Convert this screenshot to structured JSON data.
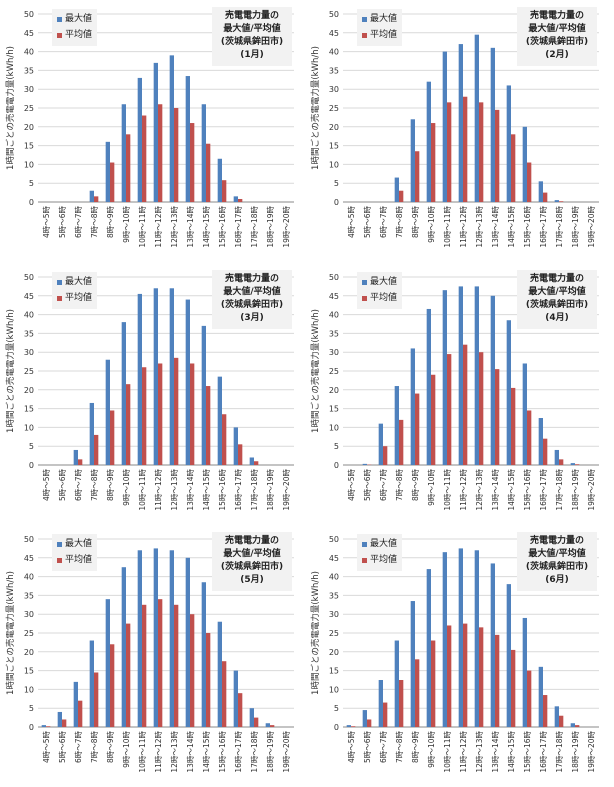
{
  "chart_data": [
    {
      "type": "bar",
      "title_lines": [
        "売電電力量の",
        "最大値/平均値",
        "(茨城県鉾田市)",
        "(1月)"
      ],
      "ylabel": "1時間ごとの売電電力量(kWh/h)",
      "ylim": [
        0,
        50
      ],
      "yticks": [
        0,
        5,
        10,
        15,
        20,
        25,
        30,
        35,
        40,
        45,
        50
      ],
      "categories": [
        "4時～5時",
        "5時～6時",
        "6時～7時",
        "7時～8時",
        "8時～9時",
        "9時～10時",
        "10時～11時",
        "11時～12時",
        "12時～13時",
        "13時～14時",
        "14時～15時",
        "15時～16時",
        "16時～17時",
        "17時～18時",
        "18時～19時",
        "19時～20時"
      ],
      "series": [
        {
          "name": "最大値",
          "color": "#4f81bd",
          "values": [
            0,
            0,
            0,
            3,
            16,
            26,
            33,
            37,
            39,
            33.5,
            26,
            11.5,
            1.5,
            0,
            0,
            0
          ]
        },
        {
          "name": "平均値",
          "color": "#c0504d",
          "values": [
            0,
            0,
            0,
            1.5,
            10.5,
            18,
            23,
            26,
            25,
            21,
            15.5,
            5.8,
            0.8,
            0,
            0,
            0
          ]
        }
      ]
    },
    {
      "type": "bar",
      "title_lines": [
        "売電電力量の",
        "最大値/平均値",
        "(茨城県鉾田市)",
        "(2月)"
      ],
      "ylabel": "1時間ごとの売電電力量(kWh/h)",
      "ylim": [
        0,
        50
      ],
      "yticks": [
        0,
        5,
        10,
        15,
        20,
        25,
        30,
        35,
        40,
        45,
        50
      ],
      "categories": [
        "4時～5時",
        "5時～6時",
        "6時～7時",
        "7時～8時",
        "8時～9時",
        "9時～10時",
        "10時～11時",
        "11時～12時",
        "12時～13時",
        "13時～14時",
        "14時～15時",
        "15時～16時",
        "16時～17時",
        "17時～18時",
        "18時～19時",
        "19時～20時"
      ],
      "series": [
        {
          "name": "最大値",
          "color": "#4f81bd",
          "values": [
            0,
            0,
            0,
            6.5,
            22,
            32,
            40,
            42,
            44.5,
            41,
            31,
            20,
            5.5,
            0.5,
            0,
            0
          ]
        },
        {
          "name": "平均値",
          "color": "#c0504d",
          "values": [
            0,
            0,
            0,
            3,
            13.5,
            21,
            26.5,
            28,
            26.5,
            24.5,
            18,
            10.5,
            2.5,
            0.2,
            0,
            0
          ]
        }
      ]
    },
    {
      "type": "bar",
      "title_lines": [
        "売電電力量の",
        "最大値/平均値",
        "(茨城県鉾田市)",
        "(3月)"
      ],
      "ylabel": "1時間ごとの売電電力量(kWh/h)",
      "ylim": [
        0,
        50
      ],
      "yticks": [
        0,
        5,
        10,
        15,
        20,
        25,
        30,
        35,
        40,
        45,
        50
      ],
      "categories": [
        "4時～5時",
        "5時～6時",
        "6時～7時",
        "7時～8時",
        "8時～9時",
        "9時～10時",
        "10時～11時",
        "11時～12時",
        "12時～13時",
        "13時～14時",
        "14時～15時",
        "15時～16時",
        "16時～17時",
        "17時～18時",
        "18時～19時",
        "19時～20時"
      ],
      "series": [
        {
          "name": "最大値",
          "color": "#4f81bd",
          "values": [
            0,
            0,
            4,
            16.5,
            28,
            38,
            45.5,
            47,
            47,
            44,
            37,
            23.5,
            10,
            2,
            0,
            0
          ]
        },
        {
          "name": "平均値",
          "color": "#c0504d",
          "values": [
            0,
            0,
            1.5,
            8,
            14.5,
            21.5,
            26,
            27,
            28.5,
            27,
            21,
            13.5,
            5.5,
            1,
            0,
            0
          ]
        }
      ]
    },
    {
      "type": "bar",
      "title_lines": [
        "売電電力量の",
        "最大値/平均値",
        "(茨城県鉾田市)",
        "(4月)"
      ],
      "ylabel": "1時間ごとの売電電力量(kWh/h)",
      "ylim": [
        0,
        50
      ],
      "yticks": [
        0,
        5,
        10,
        15,
        20,
        25,
        30,
        35,
        40,
        45,
        50
      ],
      "categories": [
        "4時～5時",
        "5時～6時",
        "6時～7時",
        "7時～8時",
        "8時～9時",
        "9時～10時",
        "10時～11時",
        "11時～12時",
        "12時～13時",
        "13時～14時",
        "14時～15時",
        "15時～16時",
        "16時～17時",
        "17時～18時",
        "18時～19時",
        "19時～20時"
      ],
      "series": [
        {
          "name": "最大値",
          "color": "#4f81bd",
          "values": [
            0,
            0.3,
            11,
            21,
            31,
            41.5,
            46.5,
            47.5,
            47.5,
            45,
            38.5,
            27,
            12.5,
            4,
            0.5,
            0
          ]
        },
        {
          "name": "平均値",
          "color": "#c0504d",
          "values": [
            0,
            0.1,
            5,
            12,
            19,
            24,
            29.5,
            32,
            30,
            25.5,
            20.5,
            14.5,
            7,
            1.5,
            0.2,
            0
          ]
        }
      ]
    },
    {
      "type": "bar",
      "title_lines": [
        "売電電力量の",
        "最大値/平均値",
        "(茨城県鉾田市)",
        "(5月)"
      ],
      "ylabel": "1時間ごとの売電電力量(kWh/h)",
      "ylim": [
        0,
        50
      ],
      "yticks": [
        0,
        5,
        10,
        15,
        20,
        25,
        30,
        35,
        40,
        45,
        50
      ],
      "categories": [
        "4時～5時",
        "5時～6時",
        "6時～7時",
        "7時～8時",
        "8時～9時",
        "9時～10時",
        "10時～11時",
        "11時～12時",
        "12時～13時",
        "13時～14時",
        "14時～15時",
        "15時～16時",
        "16時～17時",
        "17時～18時",
        "18時～19時",
        "19時～20時"
      ],
      "series": [
        {
          "name": "最大値",
          "color": "#4f81bd",
          "values": [
            0.5,
            4,
            12,
            23,
            34,
            42.5,
            47,
            47.5,
            47,
            45,
            38.5,
            28,
            15,
            5,
            1,
            0
          ]
        },
        {
          "name": "平均値",
          "color": "#c0504d",
          "values": [
            0.2,
            2,
            7,
            14.5,
            22,
            27.5,
            32.5,
            34,
            32.5,
            30,
            25,
            17.5,
            9,
            2.5,
            0.5,
            0
          ]
        }
      ]
    },
    {
      "type": "bar",
      "title_lines": [
        "売電電力量の",
        "最大値/平均値",
        "(茨城県鉾田市)",
        "(6月)"
      ],
      "ylabel": "1時間ごとの売電電力量(kWh/h)",
      "ylim": [
        0,
        50
      ],
      "yticks": [
        0,
        5,
        10,
        15,
        20,
        25,
        30,
        35,
        40,
        45,
        50
      ],
      "categories": [
        "4時～5時",
        "5時～6時",
        "6時～7時",
        "7時～8時",
        "8時～9時",
        "9時～10時",
        "10時～11時",
        "11時～12時",
        "12時～13時",
        "13時～14時",
        "14時～15時",
        "15時～16時",
        "16時～17時",
        "17時～18時",
        "18時～19時",
        "19時～20時"
      ],
      "series": [
        {
          "name": "最大値",
          "color": "#4f81bd",
          "values": [
            0.5,
            4.5,
            12.5,
            23,
            33.5,
            42,
            46.5,
            47.5,
            47,
            43.5,
            38,
            29,
            16,
            5.5,
            1,
            0
          ]
        },
        {
          "name": "平均値",
          "color": "#c0504d",
          "values": [
            0.2,
            2,
            6.5,
            12.5,
            18,
            23,
            27,
            27.5,
            26.5,
            24.5,
            20.5,
            15,
            8.5,
            3,
            0.5,
            0
          ]
        }
      ]
    }
  ]
}
